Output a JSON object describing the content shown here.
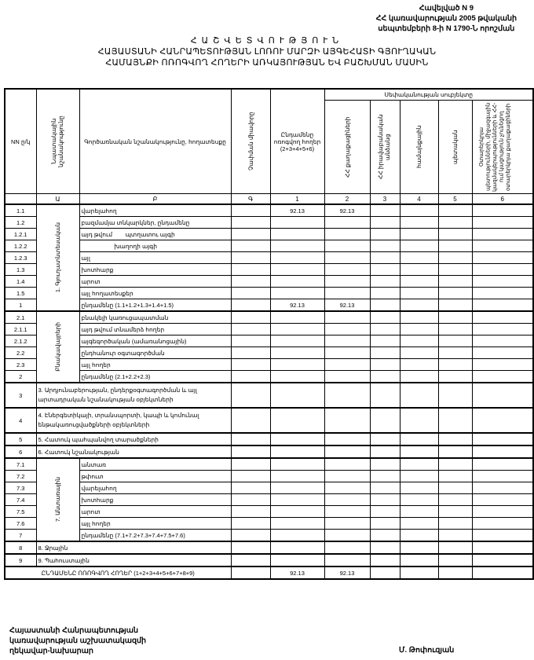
{
  "appendix": {
    "line1": "Հավելված N 9",
    "line2": "ՀՀ կառավարության 2005 թվականի",
    "line3": "սեպտեմբերի 8-ի  N 1790-Ն որոշման"
  },
  "title": {
    "line1": "ՀԱՇՎԵՏՎՈՒԹՅՈՒՆ",
    "line2": "ՀԱՅԱՍՏԱՆԻ ՀԱՆՐԱՊԵՏՈՒԹՅԱՆ ԼՈՌՈՒ ՄԱՐԶԻ ԱՅԳԵՀԱՏԻ ԳՅՈՒՂԱԿԱՆ",
    "line3": "ՀԱՄԱՅՆՔԻ ՈՌՈԳՎՈՂ ՀՈՂԵՐԻ ԱՌԿԱՅՈՒԹՅԱՆ ԵՎ ԲԱՇԽՄԱՆ ՄԱՍԻՆ"
  },
  "table": {
    "headers": {
      "nn": "NN ը/կ",
      "purpose": "Նպատակային նշանակությունը",
      "function": "Գործառնական նշանակությունը, հողատեսքը",
      "unit": "Չափման միավորը",
      "total": "Ընդամենը ոռոգվող հողեր (2+3+4+5+6)",
      "ownership": "Սեփականության սուբյեկտը",
      "c2": "ՀՀ քաղաքացիների",
      "c3": "ՀՀ իրավաբանական անձանց",
      "c4": "համայնքային",
      "c5": "պետական",
      "c6": "Օտարերկրյա պետությունների, միջազգային կազմակերպությունների և ՀՀ-ում կացություն չունեցող օտարերկրյա քաղաքացիների"
    },
    "letters": [
      "Ա",
      "Բ",
      "Գ",
      "1",
      "2",
      "3",
      "4",
      "5",
      "6"
    ],
    "sections": [
      {
        "group": "1. Գյուղատնտեսական",
        "rows": [
          {
            "num": "1.1",
            "desc": "վարելահող",
            "total": "92.13",
            "c2": "92.13"
          },
          {
            "num": "1.2",
            "desc": "բազմամյա տնկարկներ, ընդամենը"
          },
          {
            "num": "1.2.1",
            "desc": "այդ թվում        պտղատու այգի"
          },
          {
            "num": "1.2.2",
            "desc": "                    խաղողի այգի"
          },
          {
            "num": "1.2.3",
            "desc": "այլ"
          },
          {
            "num": "1.3",
            "desc": "խոտհարք"
          },
          {
            "num": "1.4",
            "desc": "արոտ"
          },
          {
            "num": "1.5",
            "desc": "այլ հողատեսքեր"
          },
          {
            "num": "1",
            "desc": "ընդամենը (1.1+1.2+1.3+1.4+1.5)",
            "total": "92.13",
            "c2": "92.13"
          }
        ]
      },
      {
        "group": "Բնակավայրերի",
        "rows": [
          {
            "num": "2.1",
            "desc": "բնակելի կառուցապատման"
          },
          {
            "num": "2.1.1",
            "desc": "այդ թվում տնամերձ հողեր"
          },
          {
            "num": "2.1.2",
            "desc": "այգեգործական (ամառանոցային)"
          },
          {
            "num": "2.2",
            "desc": "ընդհանուր օգտագործման"
          },
          {
            "num": "2.3",
            "desc": "այլ հողեր"
          },
          {
            "num": "2",
            "desc": "ընդամենը (2.1+2.2+2.3)"
          }
        ]
      },
      {
        "rows": [
          {
            "num": "3",
            "desc": "3. Արդյունաբերության, ընդերքօգտագործման և այլ արտադրական նշանակության օբյեկտների"
          }
        ]
      },
      {
        "rows": [
          {
            "num": "4",
            "desc": "4. Էներգետիկայի, տրանսպորտի, կապի և կոմունալ ենթակառուցվածքների օբյեկտների"
          }
        ]
      },
      {
        "rows": [
          {
            "num": "5",
            "desc": "5. Հատուկ պահպանվող տարածքների"
          }
        ]
      },
      {
        "rows": [
          {
            "num": "6",
            "desc": "6. Հատուկ նշանակության"
          }
        ]
      },
      {
        "group": "7. Անտառային",
        "rows": [
          {
            "num": "7.1",
            "desc": "անտառ"
          },
          {
            "num": "7.2",
            "desc": "թփուտ"
          },
          {
            "num": "7.3",
            "desc": "վարելահող"
          },
          {
            "num": "7.4",
            "desc": "խոտհարք"
          },
          {
            "num": "7.5",
            "desc": "արոտ"
          },
          {
            "num": "7.6",
            "desc": "այլ հողեր"
          },
          {
            "num": "7",
            "desc": "ընդամենը (7.1+7.2+7.3+7.4+7.5+7.6)"
          }
        ]
      },
      {
        "rows": [
          {
            "num": "8",
            "desc": "8. Ջրային"
          }
        ]
      },
      {
        "rows": [
          {
            "num": "9",
            "desc": "9. Պահուստային"
          }
        ]
      }
    ],
    "grand_total": {
      "label": "ԸՆԴԱՄԵՆԸ ՈՌՈԳՎՈՂ ՀՈՂԵՐ (1+2+3+4+5+6+7+8+9)",
      "total": "92.13",
      "c2": "92.13"
    }
  },
  "footer": {
    "line1": "Հայաստանի Հանրապետության",
    "line2": "կառավարության աշխատակազմի",
    "line3": "ղեկավար-նախարար",
    "signatory": "Մ. Թոփուզյան"
  }
}
